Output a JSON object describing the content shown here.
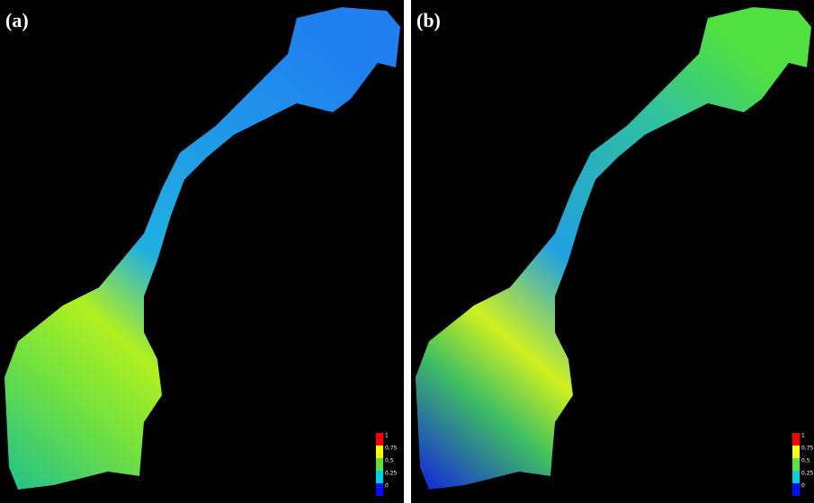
{
  "panels": [
    {
      "label": "(a)",
      "legend": [
        "1",
        "0,75",
        "0,5",
        "0,25",
        "0"
      ]
    },
    {
      "label": "(b)",
      "legend": [
        "1",
        "0,75",
        "0,5",
        "0,25",
        "0"
      ]
    }
  ]
}
